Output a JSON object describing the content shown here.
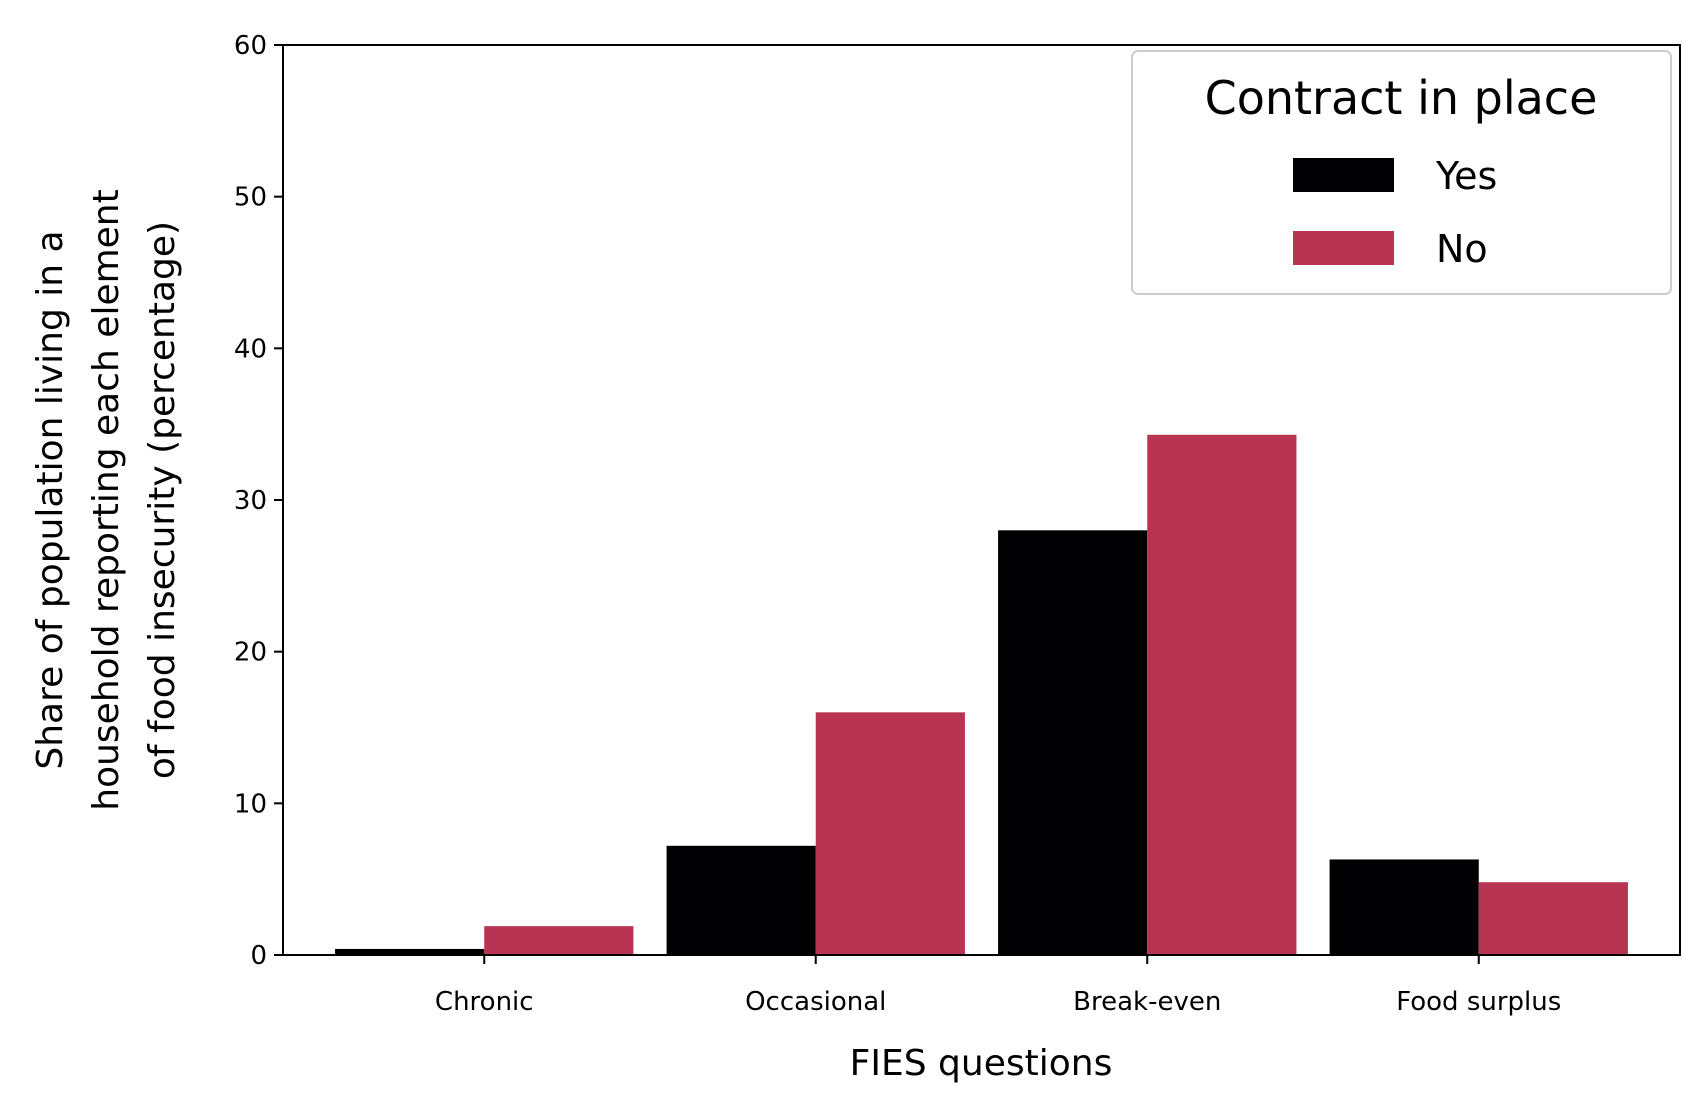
{
  "chart_data": {
    "type": "bar",
    "categories": [
      "Chronic",
      "Occasional",
      "Break-even",
      "Food surplus"
    ],
    "series": [
      {
        "name": "Yes",
        "color": "#000003",
        "values": [
          0.4,
          7.2,
          28.0,
          6.3
        ]
      },
      {
        "name": "No",
        "color": "#b83453",
        "values": [
          1.9,
          16.0,
          34.3,
          4.8
        ]
      }
    ],
    "xlabel": "FIES questions",
    "ylabel_lines": [
      "Share of population living in a",
      "household reporting each element",
      "of food insecurity (percentage)"
    ],
    "ylim": [
      0,
      60
    ],
    "yticks": [
      0,
      10,
      20,
      30,
      40,
      50,
      60
    ],
    "legend": {
      "title": "Contract in place",
      "position": "top-right"
    },
    "grid": false
  }
}
